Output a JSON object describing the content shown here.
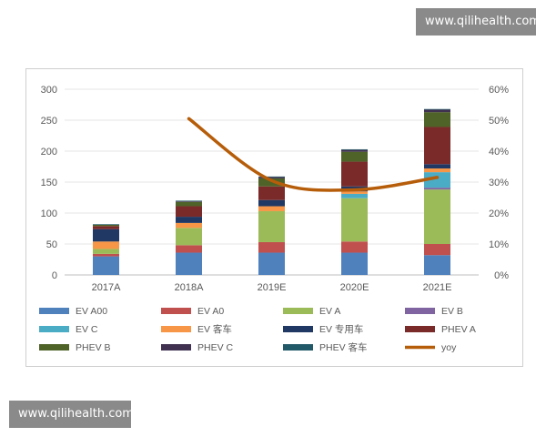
{
  "watermark": {
    "top": "www.qilihealth.com",
    "bottom": "www.qilihealth.com"
  },
  "chart_data": {
    "type": "bar",
    "stacked": true,
    "categories": [
      "2017A",
      "2018A",
      "2019E",
      "2020E",
      "2021E"
    ],
    "y_left": {
      "ylim": [
        0,
        300
      ],
      "ticks": [
        0,
        50,
        100,
        150,
        200,
        250,
        300
      ]
    },
    "y_right": {
      "ylim": [
        0,
        60
      ],
      "unit": "%",
      "ticks": [
        "0%",
        "10%",
        "20%",
        "30%",
        "40%",
        "50%",
        "60%"
      ]
    },
    "grid": true,
    "legend_position": "bottom",
    "series": [
      {
        "name": "EV A00",
        "color": "#4f81bd",
        "values": [
          30,
          36,
          36,
          36,
          32
        ]
      },
      {
        "name": "EV A0",
        "color": "#c0504d",
        "values": [
          4,
          12,
          17,
          18,
          18
        ]
      },
      {
        "name": "EV A",
        "color": "#9bbb59",
        "values": [
          8,
          28,
          50,
          70,
          88
        ]
      },
      {
        "name": "EV B",
        "color": "#8064a2",
        "values": [
          0,
          0,
          0,
          0,
          3
        ]
      },
      {
        "name": "EV C",
        "color": "#4bacc6",
        "values": [
          0,
          0,
          0,
          7,
          25
        ]
      },
      {
        "name": "EV 客车",
        "color": "#f79646",
        "values": [
          12,
          8,
          8,
          4,
          6
        ]
      },
      {
        "name": "EV 专用车",
        "color": "#1f3864",
        "values": [
          20,
          10,
          10,
          8,
          7
        ]
      },
      {
        "name": "PHEV A",
        "color": "#7b2a2a",
        "values": [
          5,
          17,
          22,
          40,
          60
        ]
      },
      {
        "name": "PHEV B",
        "color": "#4f6228",
        "values": [
          2,
          7,
          13,
          16,
          24
        ]
      },
      {
        "name": "PHEV C",
        "color": "#403151",
        "values": [
          0,
          1,
          2,
          3,
          4
        ]
      },
      {
        "name": "PHEV 客车",
        "color": "#215968",
        "values": [
          1,
          1,
          1,
          1,
          1
        ]
      }
    ],
    "line": {
      "name": "yoy",
      "color": "#b65d0a",
      "axis": "right",
      "x_start_index": 1,
      "values": [
        50.5,
        30.5,
        27.5,
        31.5
      ]
    }
  }
}
